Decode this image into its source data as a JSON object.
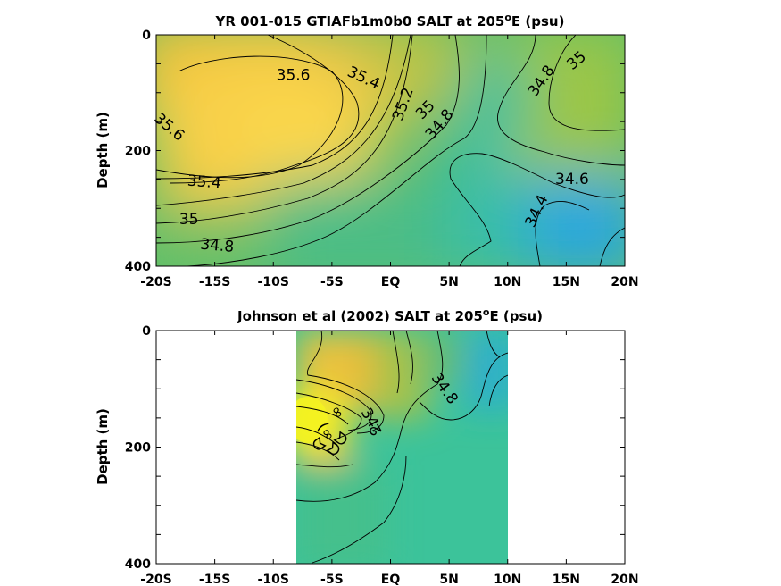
{
  "chart_data": [
    {
      "type": "heatmap",
      "title_prefix": "YR 001-015 GTIAFb1m0b0 SALT at 205",
      "title_sup": "o",
      "title_suffix": "E (psu)",
      "ylabel": "Depth (m)",
      "xlim": [
        -20,
        20
      ],
      "ylim": [
        0,
        400
      ],
      "y_reversed": true,
      "x_ticks": [
        "-20S",
        "-15S",
        "-10S",
        "-5S",
        "EQ",
        "5N",
        "10N",
        "15N",
        "20N"
      ],
      "y_ticks": [
        "0",
        "200",
        "400"
      ],
      "contour_labels": [
        {
          "text": "35.6",
          "x": -8.3,
          "y": 70
        },
        {
          "text": "35.4",
          "x": -2.3,
          "y": 75
        },
        {
          "text": "35.2",
          "x": 1.1,
          "y": 120
        },
        {
          "text": "35",
          "x": 3.0,
          "y": 130
        },
        {
          "text": "34.8",
          "x": 4.2,
          "y": 155
        },
        {
          "text": "34.8",
          "x": 12.9,
          "y": 80
        },
        {
          "text": "35",
          "x": 15.9,
          "y": 45
        },
        {
          "text": "35.6",
          "x": -18.9,
          "y": 160
        },
        {
          "text": "35.4",
          "x": -15.9,
          "y": 255
        },
        {
          "text": "35",
          "x": -17.2,
          "y": 320
        },
        {
          "text": "34.8",
          "x": -14.8,
          "y": 365
        },
        {
          "text": "34.6",
          "x": 15.5,
          "y": 250
        },
        {
          "text": "34.4",
          "x": 12.5,
          "y": 305
        }
      ]
    },
    {
      "type": "heatmap",
      "title_prefix": "Johnson et al (2002) SALT at 205",
      "title_sup": "o",
      "title_suffix": "E (psu)",
      "ylabel": "Depth (m)",
      "xlim": [
        -20,
        20
      ],
      "ylim": [
        0,
        400
      ],
      "y_reversed": true,
      "data_xrange": [
        -8,
        10
      ],
      "x_ticks": [
        "-20S",
        "-15S",
        "-10S",
        "-5S",
        "EQ",
        "5N",
        "10N",
        "15N",
        "20N"
      ],
      "y_ticks": [
        "0",
        "200",
        "400"
      ],
      "contour_labels": [
        {
          "text": "34.8",
          "x": 4.6,
          "y": 100
        },
        {
          "text": "34",
          "x": -1.8,
          "y": 150
        }
      ]
    }
  ]
}
